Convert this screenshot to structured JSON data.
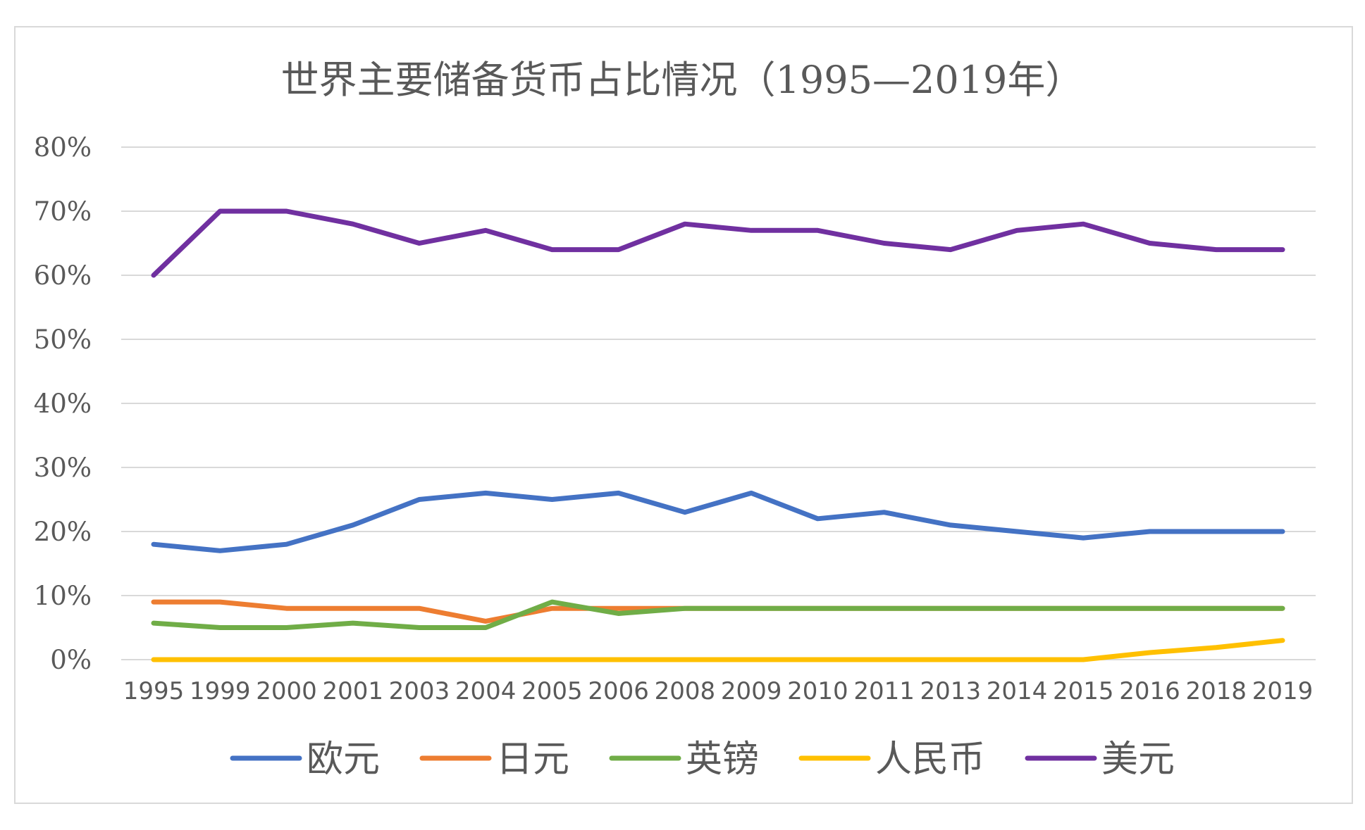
{
  "chart_data": {
    "type": "line",
    "title": "世界主要储备货币占比情况（1995—2019年）",
    "xlabel": "",
    "ylabel": "",
    "ylim": [
      0,
      80
    ],
    "y_ticks": [
      "0%",
      "10%",
      "20%",
      "30%",
      "40%",
      "50%",
      "60%",
      "70%",
      "80%"
    ],
    "y_tick_values": [
      0,
      10,
      20,
      30,
      40,
      50,
      60,
      70,
      80
    ],
    "grid": true,
    "legend_position": "bottom",
    "categories": [
      "1995",
      "1999",
      "2000",
      "2001",
      "2003",
      "2004",
      "2005",
      "2006",
      "2008",
      "2009",
      "2010",
      "2011",
      "2013",
      "2014",
      "2015",
      "2016",
      "2018",
      "2019"
    ],
    "series": [
      {
        "name": "欧元",
        "color": "#4472c4",
        "values": [
          18,
          17,
          18,
          21,
          25,
          26,
          25,
          26,
          23,
          26,
          22,
          23,
          21,
          20,
          19,
          20,
          20,
          20
        ]
      },
      {
        "name": "日元",
        "color": "#ed7d31",
        "values": [
          9,
          9,
          8,
          8,
          8,
          6,
          8,
          8,
          8,
          8,
          8,
          8,
          8,
          8,
          8,
          8,
          8,
          8
        ]
      },
      {
        "name": "英镑",
        "color": "#70ad47",
        "values": [
          5.7,
          5,
          5,
          5.7,
          5,
          5,
          9,
          7.2,
          8,
          8,
          8,
          8,
          8,
          8,
          8,
          8,
          8,
          8
        ]
      },
      {
        "name": "人民币",
        "color": "#ffc000",
        "values": [
          0,
          0,
          0,
          0,
          0,
          0,
          0,
          0,
          0,
          0,
          0,
          0,
          0,
          0,
          0,
          1.1,
          1.9,
          3
        ]
      },
      {
        "name": "美元",
        "color": "#7030a0",
        "values": [
          60,
          70,
          70,
          68,
          65,
          67,
          64,
          64,
          68,
          67,
          67,
          65,
          64,
          67,
          68,
          65,
          64,
          64
        ]
      }
    ]
  }
}
